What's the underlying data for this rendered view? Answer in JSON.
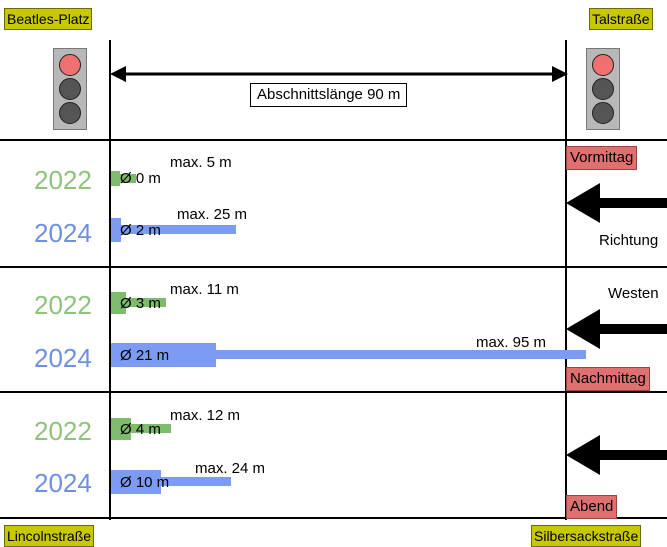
{
  "streets": {
    "top_left": "Beatles-Platz",
    "top_right": "Talstraße",
    "bottom_left": "Lincolnstraße",
    "bottom_right": "Silbersackstraße"
  },
  "segment_length_label": "Abschnittslänge 90 m",
  "direction": {
    "line1": "Richtung",
    "line2": "Westen"
  },
  "colors": {
    "year_2022": "#8dc37a",
    "year_2024": "#6f8fe2",
    "period": "#e07070",
    "street": "#c8c800"
  },
  "periods": [
    {
      "label": "Vormittag",
      "rows": [
        {
          "year": "2022",
          "avg_label": "Ø 0 m",
          "max_label": "max. 5 m",
          "avg_m": 0,
          "max_m": 5
        },
        {
          "year": "2024",
          "avg_label": "Ø 2 m",
          "max_label": "max. 25 m",
          "avg_m": 2,
          "max_m": 25
        }
      ]
    },
    {
      "label": "Nachmittag",
      "rows": [
        {
          "year": "2022",
          "avg_label": "Ø 3 m",
          "max_label": "max. 11 m",
          "avg_m": 3,
          "max_m": 11
        },
        {
          "year": "2024",
          "avg_label": "Ø 21 m",
          "max_label": "max. 95 m",
          "avg_m": 21,
          "max_m": 95
        }
      ]
    },
    {
      "label": "Abend",
      "rows": [
        {
          "year": "2022",
          "avg_label": "Ø 4 m",
          "max_label": "max. 12 m",
          "avg_m": 4,
          "max_m": 12
        },
        {
          "year": "2024",
          "avg_label": "Ø 10 m",
          "max_label": "max. 24 m",
          "avg_m": 10,
          "max_m": 24
        }
      ]
    }
  ]
}
